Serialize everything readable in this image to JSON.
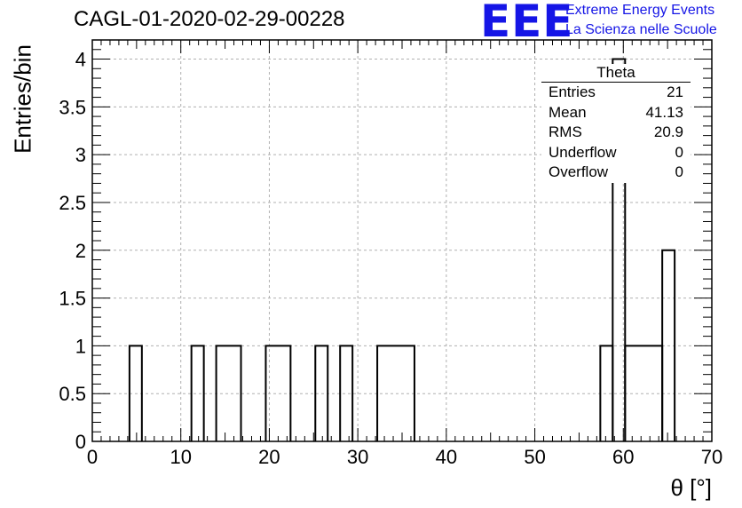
{
  "page": {
    "title": "CAGL-01-2020-02-29-00228",
    "logo": {
      "mark": "EEE",
      "line1": "Extreme Energy Events",
      "line2": "La Scienza nelle Scuole"
    }
  },
  "stats": {
    "title": "Theta",
    "rows": [
      {
        "label": "Entries",
        "value": "21"
      },
      {
        "label": "Mean",
        "value": "41.13"
      },
      {
        "label": "RMS",
        "value": "20.9"
      },
      {
        "label": "Underflow",
        "value": "0"
      },
      {
        "label": "Overflow",
        "value": "0"
      }
    ]
  },
  "chart_data": {
    "type": "bar",
    "title": "CAGL-01-2020-02-29-00228",
    "xlabel": "θ [°]",
    "ylabel": "Entries/bin",
    "xlim": [
      0,
      70
    ],
    "ylim": [
      0,
      4.2
    ],
    "grid": true,
    "legend": "top-right",
    "x_ticks": [
      0,
      10,
      20,
      30,
      40,
      50,
      60,
      70
    ],
    "x_tick_labels": [
      "0",
      "10",
      "20",
      "30",
      "40",
      "50",
      "60",
      "70"
    ],
    "y_ticks": [
      0,
      0.5,
      1,
      1.5,
      2,
      2.5,
      3,
      3.5,
      4
    ],
    "y_tick_labels": [
      "0",
      "0.5",
      "1",
      "1.5",
      "2",
      "2.5",
      "3",
      "3.5",
      "4"
    ],
    "bins": [
      {
        "x0": 4.2,
        "x1": 5.6,
        "value": 1
      },
      {
        "x0": 11.2,
        "x1": 12.6,
        "value": 1
      },
      {
        "x0": 14.0,
        "x1": 16.8,
        "value": 1
      },
      {
        "x0": 19.6,
        "x1": 22.4,
        "value": 1
      },
      {
        "x0": 25.2,
        "x1": 26.6,
        "value": 1
      },
      {
        "x0": 28.0,
        "x1": 29.4,
        "value": 1
      },
      {
        "x0": 32.2,
        "x1": 36.4,
        "value": 1
      },
      {
        "x0": 57.4,
        "x1": 58.8,
        "value": 1
      },
      {
        "x0": 58.8,
        "x1": 60.2,
        "value": 4
      },
      {
        "x0": 60.2,
        "x1": 64.4,
        "value": 1
      },
      {
        "x0": 64.4,
        "x1": 65.8,
        "value": 2
      }
    ]
  }
}
